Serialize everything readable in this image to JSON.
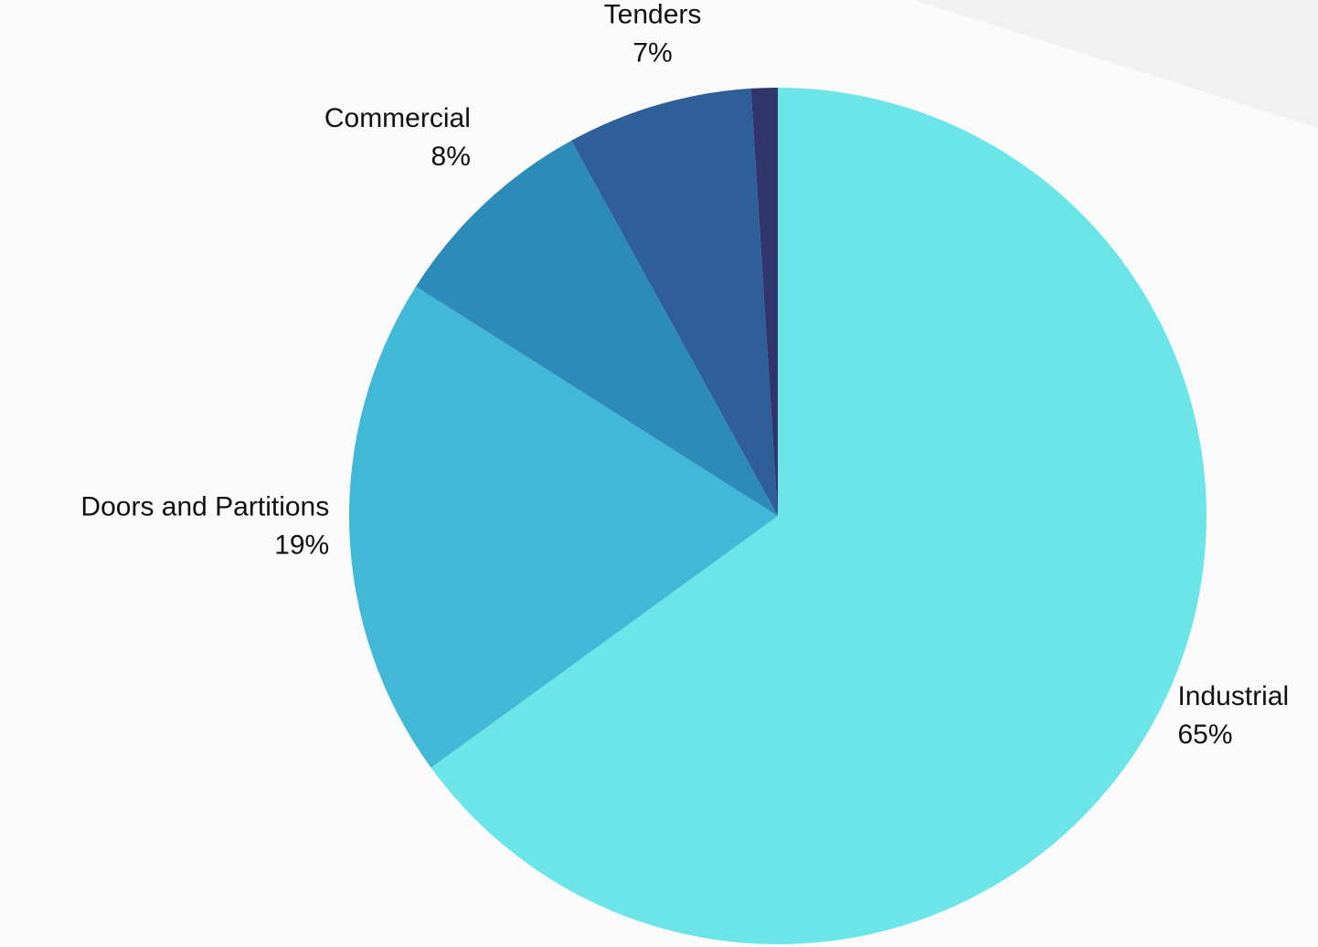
{
  "chart_data": {
    "type": "pie",
    "categories": [
      "Industrial",
      "Doors and Partitions",
      "Commercial",
      "Tenders",
      null
    ],
    "values": [
      65,
      19,
      8,
      7,
      1
    ],
    "value_labels": [
      "65%",
      "19%",
      "8%",
      "7%",
      null
    ],
    "colors": [
      "#6ce5e8",
      "#41b8d5",
      "#2d8bba",
      "#2f5f98",
      "#31356e"
    ]
  }
}
